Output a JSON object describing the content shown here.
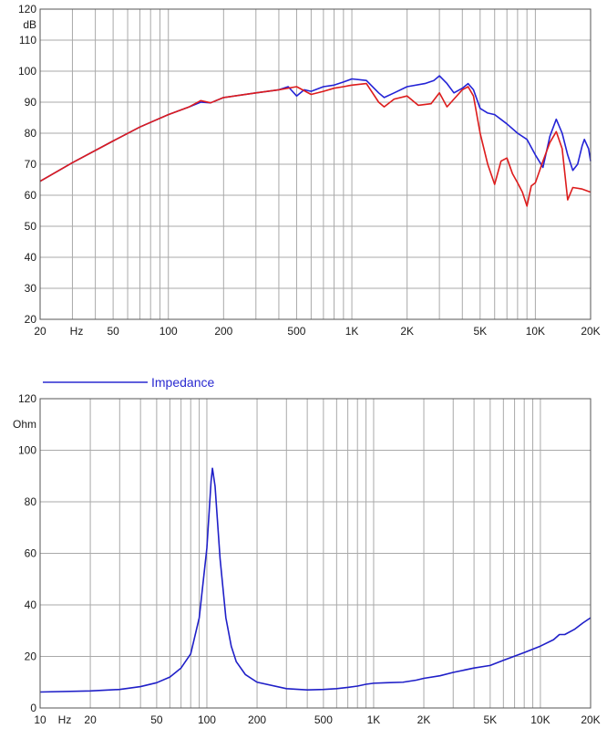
{
  "chart_data": [
    {
      "type": "line",
      "title": "",
      "y_unit": "dB",
      "x_unit": "Hz",
      "x_scale": "log",
      "xlim": [
        20,
        20000
      ],
      "ylim": [
        20,
        120
      ],
      "grid": true,
      "y_ticks": [
        "20",
        "30",
        "40",
        "50",
        "60",
        "70",
        "80",
        "90",
        "100",
        "110",
        "120"
      ],
      "x_ticks": [
        {
          "v": 20,
          "label": "20"
        },
        {
          "v": 50,
          "label": "50"
        },
        {
          "v": 100,
          "label": "100"
        },
        {
          "v": 200,
          "label": "200"
        },
        {
          "v": 500,
          "label": "500"
        },
        {
          "v": 1000,
          "label": "1K"
        },
        {
          "v": 2000,
          "label": "2K"
        },
        {
          "v": 5000,
          "label": "5K"
        },
        {
          "v": 10000,
          "label": "10K"
        },
        {
          "v": 20000,
          "label": "20K"
        }
      ],
      "series": [
        {
          "color": "#2323d6",
          "points": [
            [
              20,
              64.5
            ],
            [
              30,
              70.5
            ],
            [
              50,
              77.5
            ],
            [
              70,
              82
            ],
            [
              100,
              86
            ],
            [
              130,
              88.5
            ],
            [
              150,
              90
            ],
            [
              170,
              89.8
            ],
            [
              200,
              91.5
            ],
            [
              300,
              93
            ],
            [
              400,
              94
            ],
            [
              450,
              95
            ],
            [
              500,
              92
            ],
            [
              550,
              94
            ],
            [
              600,
              93.5
            ],
            [
              700,
              95
            ],
            [
              800,
              95.5
            ],
            [
              900,
              96.5
            ],
            [
              1000,
              97.5
            ],
            [
              1200,
              97
            ],
            [
              1400,
              93
            ],
            [
              1500,
              91.5
            ],
            [
              1700,
              93
            ],
            [
              2000,
              95
            ],
            [
              2500,
              96
            ],
            [
              2800,
              97
            ],
            [
              3000,
              98.5
            ],
            [
              3300,
              96
            ],
            [
              3600,
              93
            ],
            [
              4000,
              94.5
            ],
            [
              4300,
              96
            ],
            [
              4600,
              94
            ],
            [
              5000,
              88
            ],
            [
              5500,
              86.5
            ],
            [
              6000,
              86
            ],
            [
              7000,
              83
            ],
            [
              8000,
              80
            ],
            [
              9000,
              78
            ],
            [
              10000,
              73
            ],
            [
              11000,
              69
            ],
            [
              12000,
              79
            ],
            [
              13000,
              84.5
            ],
            [
              14000,
              80
            ],
            [
              15000,
              73
            ],
            [
              16000,
              68
            ],
            [
              17000,
              70
            ],
            [
              18000,
              76
            ],
            [
              18500,
              78
            ],
            [
              19500,
              75
            ],
            [
              20000,
              71
            ]
          ]
        },
        {
          "color": "#dd1c1c",
          "points": [
            [
              20,
              64.5
            ],
            [
              30,
              70.5
            ],
            [
              50,
              77.5
            ],
            [
              70,
              82
            ],
            [
              100,
              86
            ],
            [
              130,
              88.5
            ],
            [
              150,
              90.5
            ],
            [
              170,
              89.8
            ],
            [
              200,
              91.5
            ],
            [
              300,
              93
            ],
            [
              400,
              94
            ],
            [
              500,
              95
            ],
            [
              600,
              92.5
            ],
            [
              700,
              93.5
            ],
            [
              800,
              94.5
            ],
            [
              900,
              95
            ],
            [
              1000,
              95.5
            ],
            [
              1200,
              96
            ],
            [
              1400,
              90
            ],
            [
              1500,
              88.5
            ],
            [
              1700,
              91
            ],
            [
              2000,
              92
            ],
            [
              2300,
              89
            ],
            [
              2700,
              89.5
            ],
            [
              3000,
              93
            ],
            [
              3300,
              88.5
            ],
            [
              3600,
              91
            ],
            [
              4000,
              94
            ],
            [
              4300,
              95
            ],
            [
              4600,
              92
            ],
            [
              5000,
              80
            ],
            [
              5500,
              70
            ],
            [
              6000,
              63.5
            ],
            [
              6500,
              71
            ],
            [
              7000,
              72
            ],
            [
              7500,
              67
            ],
            [
              8000,
              64
            ],
            [
              8500,
              61
            ],
            [
              9000,
              56.5
            ],
            [
              9500,
              63
            ],
            [
              10000,
              64
            ],
            [
              11000,
              71
            ],
            [
              12000,
              77
            ],
            [
              13000,
              80.5
            ],
            [
              14000,
              75
            ],
            [
              15000,
              58.5
            ],
            [
              16000,
              62.5
            ],
            [
              18000,
              62
            ],
            [
              20000,
              61
            ]
          ]
        }
      ]
    },
    {
      "type": "line",
      "title": "",
      "y_unit": "Ohm",
      "x_unit": "Hz",
      "x_scale": "log",
      "xlim": [
        10,
        20000
      ],
      "ylim": [
        0,
        120
      ],
      "grid": true,
      "legend": {
        "label": "Impedance",
        "position": "top-left"
      },
      "y_ticks": [
        "0",
        "20",
        "40",
        "60",
        "80",
        "100",
        "120"
      ],
      "x_ticks": [
        {
          "v": 10,
          "label": "10"
        },
        {
          "v": 20,
          "label": "20"
        },
        {
          "v": 50,
          "label": "50"
        },
        {
          "v": 100,
          "label": "100"
        },
        {
          "v": 200,
          "label": "200"
        },
        {
          "v": 500,
          "label": "500"
        },
        {
          "v": 1000,
          "label": "1K"
        },
        {
          "v": 2000,
          "label": "2K"
        },
        {
          "v": 5000,
          "label": "5K"
        },
        {
          "v": 10000,
          "label": "10K"
        },
        {
          "v": 20000,
          "label": "20K"
        }
      ],
      "series": [
        {
          "name": "Impedance",
          "color": "#1f1fc8",
          "points": [
            [
              10,
              6.2
            ],
            [
              20,
              6.6
            ],
            [
              30,
              7.2
            ],
            [
              40,
              8.3
            ],
            [
              50,
              9.8
            ],
            [
              60,
              12
            ],
            [
              70,
              15.5
            ],
            [
              80,
              21
            ],
            [
              90,
              35
            ],
            [
              100,
              62
            ],
            [
              106,
              88
            ],
            [
              108,
              93
            ],
            [
              112,
              86
            ],
            [
              120,
              58
            ],
            [
              130,
              35
            ],
            [
              140,
              24
            ],
            [
              150,
              18
            ],
            [
              170,
              13
            ],
            [
              200,
              10
            ],
            [
              300,
              7.5
            ],
            [
              400,
              7
            ],
            [
              500,
              7.2
            ],
            [
              600,
              7.5
            ],
            [
              700,
              8
            ],
            [
              800,
              8.5
            ],
            [
              900,
              9.2
            ],
            [
              1000,
              9.6
            ],
            [
              1200,
              9.8
            ],
            [
              1500,
              10
            ],
            [
              1800,
              10.8
            ],
            [
              2000,
              11.5
            ],
            [
              2500,
              12.5
            ],
            [
              3000,
              13.8
            ],
            [
              4000,
              15.5
            ],
            [
              5000,
              16.5
            ],
            [
              6000,
              18.5
            ],
            [
              8000,
              21.5
            ],
            [
              10000,
              24
            ],
            [
              12000,
              26.5
            ],
            [
              13000,
              28.5
            ],
            [
              14000,
              28.5
            ],
            [
              16000,
              30.5
            ],
            [
              18000,
              33
            ],
            [
              20000,
              35
            ]
          ]
        }
      ]
    }
  ]
}
